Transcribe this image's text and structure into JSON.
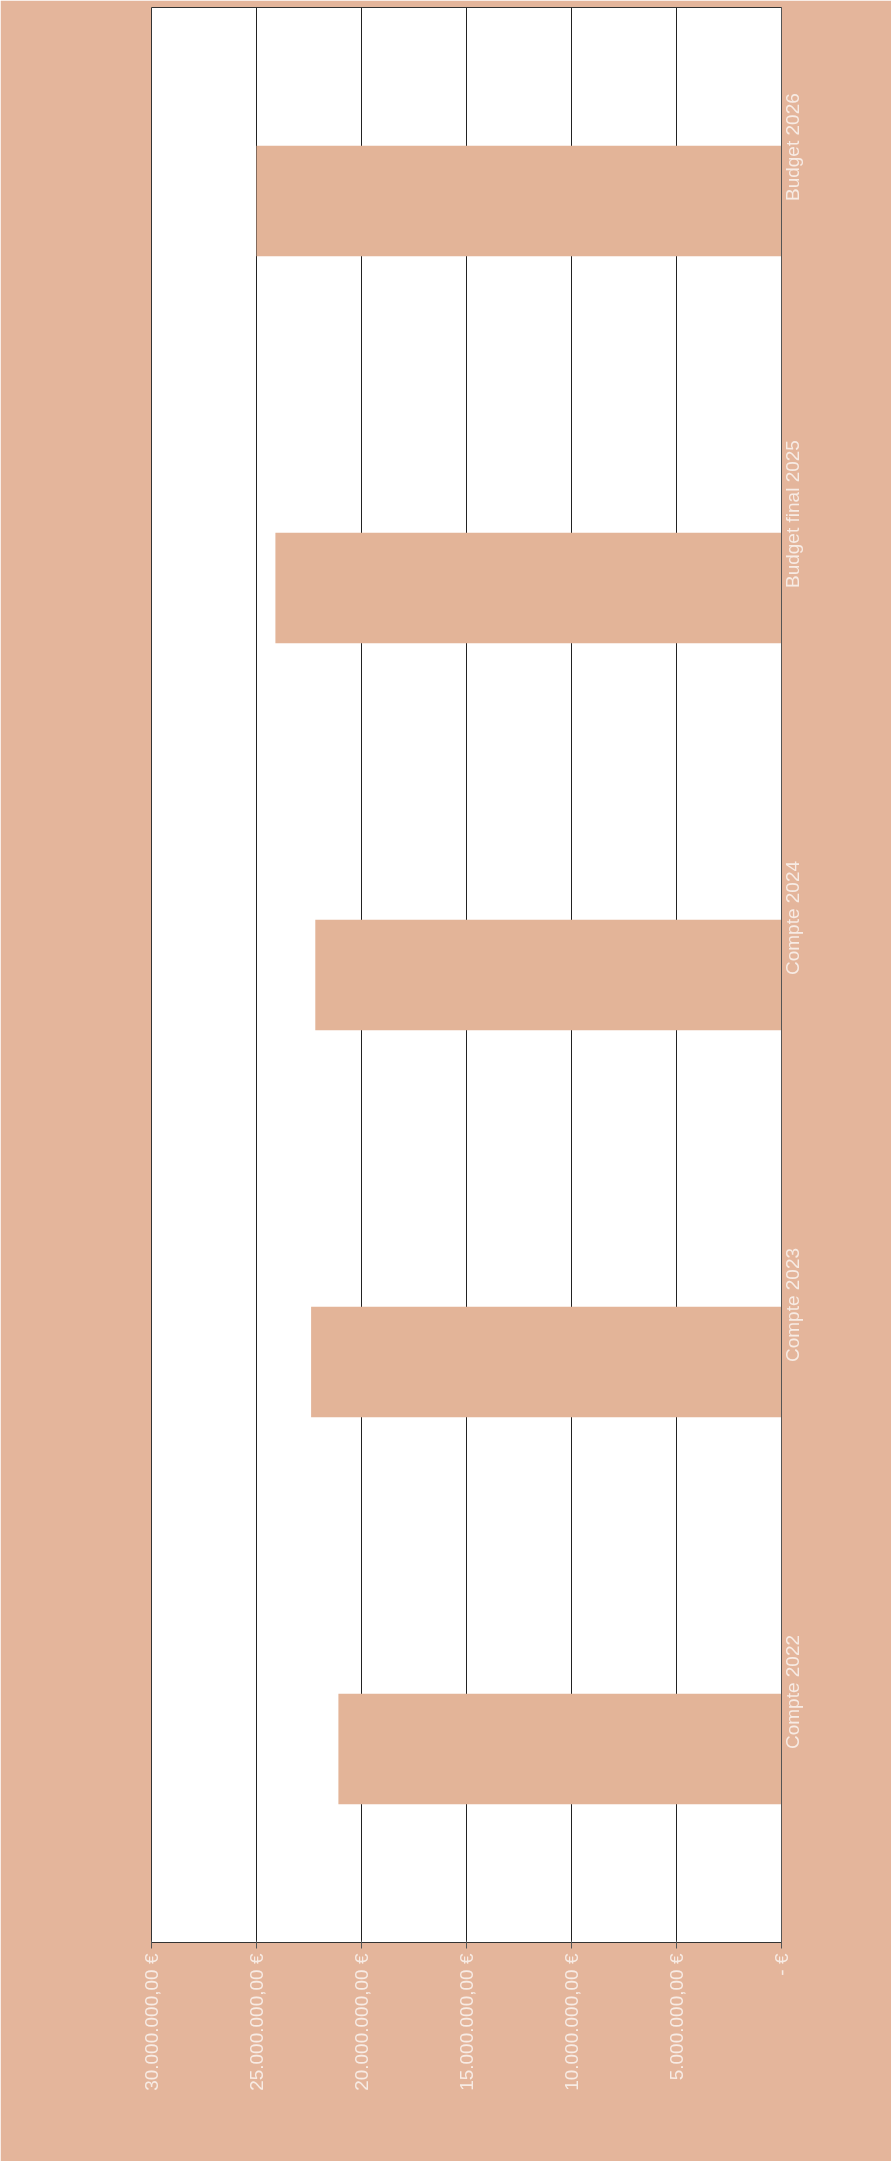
{
  "chart_data": {
    "type": "bar",
    "orientation": "horizontal",
    "categories": [
      "Budget 2026",
      "Budget final 2025",
      "Compte 2024",
      "Compte 2023",
      "Compte 2022"
    ],
    "values": [
      25000000,
      24100000,
      22200000,
      22400000,
      21100000
    ],
    "color": "#e3b498",
    "xlim": [
      30000000,
      0
    ],
    "xticks": [
      {
        "value": 30000000,
        "label": "30.000.000,00 €"
      },
      {
        "value": 25000000,
        "label": "25.000.000,00 €"
      },
      {
        "value": 20000000,
        "label": "20.000.000,00 €"
      },
      {
        "value": 15000000,
        "label": "15.000.000,00 €"
      },
      {
        "value": 10000000,
        "label": "10.000.000,00 €"
      },
      {
        "value": 5000000,
        "label": "5.000.000,00 €"
      },
      {
        "value": 0,
        "label": "- €"
      }
    ],
    "grid": "x"
  }
}
